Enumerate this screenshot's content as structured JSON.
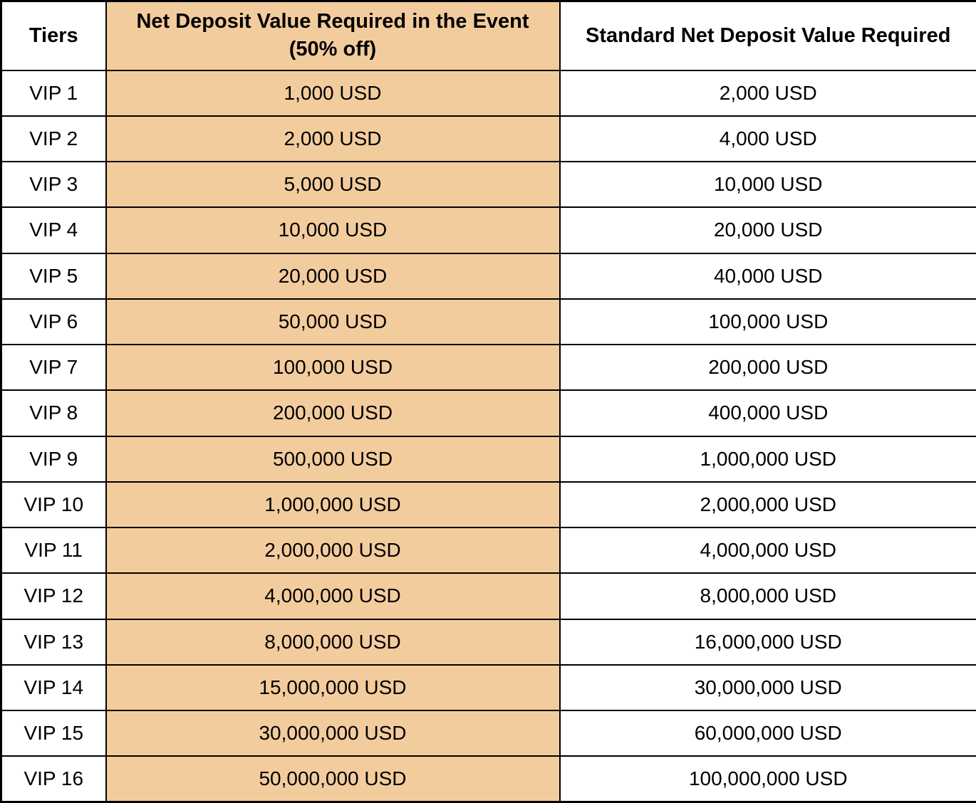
{
  "colors": {
    "highlight_column": "#F3CC9E",
    "border": "#000000",
    "background": "#FFFFFF",
    "text": "#000000"
  },
  "table": {
    "columns": [
      {
        "label": "Tiers",
        "sublabel": ""
      },
      {
        "label": "Net Deposit Value Required in the Event",
        "sublabel": "(50% off)"
      },
      {
        "label": "Standard Net Deposit Value Required",
        "sublabel": ""
      }
    ],
    "rows": [
      {
        "tier": "VIP 1",
        "event_value": "1,000 USD",
        "standard_value": "2,000 USD"
      },
      {
        "tier": "VIP 2",
        "event_value": "2,000 USD",
        "standard_value": "4,000 USD"
      },
      {
        "tier": "VIP 3",
        "event_value": "5,000 USD",
        "standard_value": "10,000 USD"
      },
      {
        "tier": "VIP 4",
        "event_value": "10,000 USD",
        "standard_value": "20,000 USD"
      },
      {
        "tier": "VIP 5",
        "event_value": "20,000 USD",
        "standard_value": "40,000 USD"
      },
      {
        "tier": "VIP 6",
        "event_value": "50,000 USD",
        "standard_value": "100,000 USD"
      },
      {
        "tier": "VIP 7",
        "event_value": "100,000 USD",
        "standard_value": "200,000 USD"
      },
      {
        "tier": "VIP 8",
        "event_value": "200,000 USD",
        "standard_value": "400,000 USD"
      },
      {
        "tier": "VIP 9",
        "event_value": "500,000 USD",
        "standard_value": "1,000,000 USD"
      },
      {
        "tier": "VIP 10",
        "event_value": "1,000,000 USD",
        "standard_value": "2,000,000 USD"
      },
      {
        "tier": "VIP 11",
        "event_value": "2,000,000 USD",
        "standard_value": "4,000,000 USD"
      },
      {
        "tier": "VIP 12",
        "event_value": "4,000,000 USD",
        "standard_value": "8,000,000 USD"
      },
      {
        "tier": "VIP 13",
        "event_value": "8,000,000 USD",
        "standard_value": "16,000,000 USD"
      },
      {
        "tier": "VIP 14",
        "event_value": "15,000,000 USD",
        "standard_value": "30,000,000 USD"
      },
      {
        "tier": "VIP 15",
        "event_value": "30,000,000 USD",
        "standard_value": "60,000,000 USD"
      },
      {
        "tier": "VIP 16",
        "event_value": "50,000,000 USD",
        "standard_value": "100,000,000 USD"
      }
    ]
  },
  "chart_data": {
    "type": "table",
    "title": "",
    "columns": [
      "Tiers",
      "Net Deposit Value Required in the Event (50% off)",
      "Standard Net Deposit Value Required"
    ],
    "rows": [
      [
        "VIP 1",
        "1,000 USD",
        "2,000 USD"
      ],
      [
        "VIP 2",
        "2,000 USD",
        "4,000 USD"
      ],
      [
        "VIP 3",
        "5,000 USD",
        "10,000 USD"
      ],
      [
        "VIP 4",
        "10,000 USD",
        "20,000 USD"
      ],
      [
        "VIP 5",
        "20,000 USD",
        "40,000 USD"
      ],
      [
        "VIP 6",
        "50,000 USD",
        "100,000 USD"
      ],
      [
        "VIP 7",
        "100,000 USD",
        "200,000 USD"
      ],
      [
        "VIP 8",
        "200,000 USD",
        "400,000 USD"
      ],
      [
        "VIP 9",
        "500,000 USD",
        "1,000,000 USD"
      ],
      [
        "VIP 10",
        "1,000,000 USD",
        "2,000,000 USD"
      ],
      [
        "VIP 11",
        "2,000,000 USD",
        "4,000,000 USD"
      ],
      [
        "VIP 12",
        "4,000,000 USD",
        "8,000,000 USD"
      ],
      [
        "VIP 13",
        "8,000,000 USD",
        "16,000,000 USD"
      ],
      [
        "VIP 14",
        "15,000,000 USD",
        "30,000,000 USD"
      ],
      [
        "VIP 15",
        "30,000,000 USD",
        "60,000,000 USD"
      ],
      [
        "VIP 16",
        "50,000,000 USD",
        "100,000,000 USD"
      ]
    ],
    "event_values_usd": [
      1000,
      2000,
      5000,
      10000,
      20000,
      50000,
      100000,
      200000,
      500000,
      1000000,
      2000000,
      4000000,
      8000000,
      15000000,
      30000000,
      50000000
    ],
    "standard_values_usd": [
      2000,
      4000,
      10000,
      20000,
      40000,
      100000,
      200000,
      400000,
      1000000,
      2000000,
      4000000,
      8000000,
      16000000,
      30000000,
      60000000,
      100000000
    ],
    "layout_hints": {
      "highlighted_column_index": 1,
      "highlight_color": "#F3CC9E",
      "grid": true,
      "border_color": "#000000"
    }
  }
}
